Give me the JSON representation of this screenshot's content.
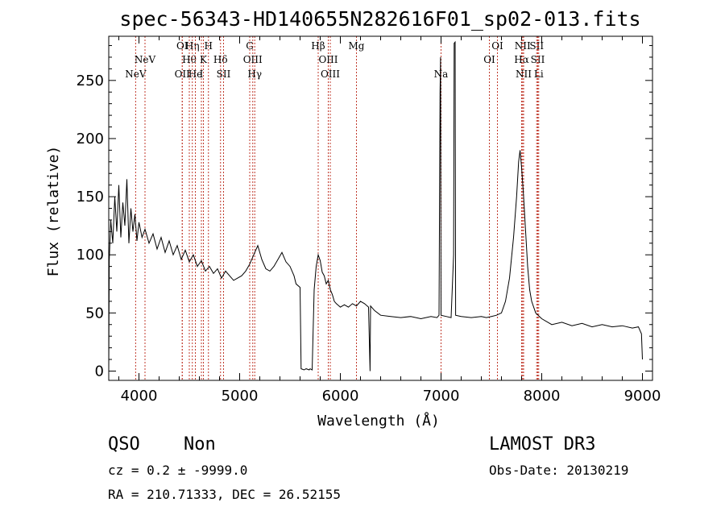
{
  "title": "spec-56343-HD140655N282616F01_sp02-013.fits",
  "info": {
    "class_label": "QSO",
    "subclass_label": "Non",
    "survey": "LAMOST DR3",
    "cz_text": "cz = 0.2 ± -9999.0",
    "obs_date": "Obs-Date: 20130219",
    "radec_text": "RA = 210.71333, DEC =  26.52155"
  },
  "colors": {
    "spectrum": "#000000",
    "line_markers": "#c0392b",
    "axes": "#000000",
    "background": "#ffffff"
  },
  "chart_data": {
    "type": "line",
    "title": "spec-56343-HD140655N282616F01_sp02-013.fits",
    "xlabel": "Wavelength (Å)",
    "ylabel": "Flux (relative)",
    "xlim": [
      3700,
      9100
    ],
    "ylim": [
      -8,
      288
    ],
    "xticks": [
      4000,
      5000,
      6000,
      7000,
      8000,
      9000
    ],
    "yticks": [
      0,
      50,
      100,
      150,
      200,
      250
    ],
    "grid": false,
    "series": [
      {
        "points": [
          [
            3700,
            0
          ],
          [
            3705,
            95
          ],
          [
            3720,
            130
          ],
          [
            3740,
            110
          ],
          [
            3760,
            150
          ],
          [
            3780,
            120
          ],
          [
            3800,
            160
          ],
          [
            3820,
            115
          ],
          [
            3840,
            145
          ],
          [
            3860,
            125
          ],
          [
            3880,
            165
          ],
          [
            3900,
            110
          ],
          [
            3920,
            140
          ],
          [
            3940,
            120
          ],
          [
            3960,
            135
          ],
          [
            3980,
            112
          ],
          [
            4000,
            128
          ],
          [
            4030,
            115
          ],
          [
            4060,
            122
          ],
          [
            4100,
            110
          ],
          [
            4140,
            118
          ],
          [
            4180,
            105
          ],
          [
            4220,
            115
          ],
          [
            4260,
            102
          ],
          [
            4300,
            112
          ],
          [
            4340,
            100
          ],
          [
            4380,
            108
          ],
          [
            4420,
            96
          ],
          [
            4460,
            104
          ],
          [
            4500,
            94
          ],
          [
            4540,
            100
          ],
          [
            4580,
            90
          ],
          [
            4620,
            95
          ],
          [
            4660,
            86
          ],
          [
            4700,
            90
          ],
          [
            4740,
            84
          ],
          [
            4780,
            88
          ],
          [
            4820,
            80
          ],
          [
            4860,
            86
          ],
          [
            4900,
            82
          ],
          [
            4940,
            78
          ],
          [
            4980,
            80
          ],
          [
            5020,
            82
          ],
          [
            5060,
            86
          ],
          [
            5100,
            92
          ],
          [
            5140,
            100
          ],
          [
            5180,
            108
          ],
          [
            5220,
            96
          ],
          [
            5260,
            88
          ],
          [
            5300,
            86
          ],
          [
            5340,
            90
          ],
          [
            5380,
            96
          ],
          [
            5420,
            102
          ],
          [
            5460,
            94
          ],
          [
            5500,
            90
          ],
          [
            5540,
            82
          ],
          [
            5560,
            75
          ],
          [
            5600,
            72
          ],
          [
            5610,
            2
          ],
          [
            5640,
            1
          ],
          [
            5660,
            2
          ],
          [
            5690,
            1
          ],
          [
            5700,
            2
          ],
          [
            5720,
            1
          ],
          [
            5740,
            70
          ],
          [
            5760,
            90
          ],
          [
            5780,
            100
          ],
          [
            5800,
            95
          ],
          [
            5820,
            85
          ],
          [
            5840,
            82
          ],
          [
            5860,
            75
          ],
          [
            5880,
            78
          ],
          [
            5900,
            70
          ],
          [
            5920,
            66
          ],
          [
            5940,
            60
          ],
          [
            5960,
            58
          ],
          [
            6000,
            55
          ],
          [
            6040,
            57
          ],
          [
            6080,
            55
          ],
          [
            6120,
            58
          ],
          [
            6160,
            56
          ],
          [
            6200,
            60
          ],
          [
            6240,
            58
          ],
          [
            6280,
            55
          ],
          [
            6295,
            0
          ],
          [
            6300,
            56
          ],
          [
            6340,
            52
          ],
          [
            6400,
            48
          ],
          [
            6500,
            47
          ],
          [
            6600,
            46
          ],
          [
            6700,
            47
          ],
          [
            6800,
            45
          ],
          [
            6900,
            47
          ],
          [
            6960,
            46
          ],
          [
            6980,
            48
          ],
          [
            6990,
            240
          ],
          [
            6995,
            270
          ],
          [
            7000,
            48
          ],
          [
            7050,
            47
          ],
          [
            7100,
            46
          ],
          [
            7125,
            100
          ],
          [
            7130,
            282
          ],
          [
            7140,
            283
          ],
          [
            7145,
            48
          ],
          [
            7200,
            47
          ],
          [
            7300,
            46
          ],
          [
            7400,
            47
          ],
          [
            7450,
            46
          ],
          [
            7500,
            47
          ],
          [
            7550,
            48
          ],
          [
            7600,
            50
          ],
          [
            7640,
            60
          ],
          [
            7680,
            80
          ],
          [
            7720,
            115
          ],
          [
            7750,
            150
          ],
          [
            7770,
            180
          ],
          [
            7785,
            190
          ],
          [
            7800,
            175
          ],
          [
            7820,
            150
          ],
          [
            7840,
            120
          ],
          [
            7860,
            90
          ],
          [
            7880,
            70
          ],
          [
            7900,
            60
          ],
          [
            7940,
            50
          ],
          [
            8000,
            45
          ],
          [
            8100,
            40
          ],
          [
            8200,
            42
          ],
          [
            8300,
            39
          ],
          [
            8400,
            41
          ],
          [
            8500,
            38
          ],
          [
            8600,
            40
          ],
          [
            8700,
            38
          ],
          [
            8800,
            39
          ],
          [
            8900,
            37
          ],
          [
            8960,
            38
          ],
          [
            8990,
            32
          ],
          [
            9000,
            10
          ]
        ]
      }
    ],
    "line_markers": [
      {
        "x": 3967,
        "label": "NeV",
        "row": 3
      },
      {
        "x": 4060,
        "label": "NeV",
        "row": 2
      },
      {
        "x": 4430,
        "label": "OII",
        "row": 3
      },
      {
        "x": 4430,
        "label": "OI",
        "row": 1
      },
      {
        "x": 4500,
        "label": "Hθ",
        "row": 2
      },
      {
        "x": 4530,
        "label": "Hη",
        "row": 1
      },
      {
        "x": 4560,
        "label": "He",
        "row": 3
      },
      {
        "x": 4620,
        "label": "I",
        "row": 3
      },
      {
        "x": 4640,
        "label": "K",
        "row": 2
      },
      {
        "x": 4690,
        "label": "H",
        "row": 1
      },
      {
        "x": 4810,
        "label": "Hδ",
        "row": 2
      },
      {
        "x": 4840,
        "label": "SII",
        "row": 3
      },
      {
        "x": 5100,
        "label": "G",
        "row": 1
      },
      {
        "x": 5130,
        "label": "OIII",
        "row": 2
      },
      {
        "x": 5150,
        "label": "Hγ",
        "row": 3
      },
      {
        "x": 5780,
        "label": "Hβ",
        "row": 1
      },
      {
        "x": 5880,
        "label": "OIII",
        "row": 2
      },
      {
        "x": 5900,
        "label": "OIII",
        "row": 3
      },
      {
        "x": 6160,
        "label": "Mg",
        "row": 1
      },
      {
        "x": 7000,
        "label": "Na",
        "row": 3
      },
      {
        "x": 7480,
        "label": "OI",
        "row": 2
      },
      {
        "x": 7560,
        "label": "OI",
        "row": 1
      },
      {
        "x": 7800,
        "label": "Hα",
        "row": 2
      },
      {
        "x": 7810,
        "label": "NII",
        "row": 1
      },
      {
        "x": 7820,
        "label": "NII",
        "row": 3
      },
      {
        "x": 7950,
        "label": "SII",
        "row": 1
      },
      {
        "x": 7960,
        "label": "SII",
        "row": 2
      },
      {
        "x": 7970,
        "label": "Li",
        "row": 3
      }
    ]
  }
}
